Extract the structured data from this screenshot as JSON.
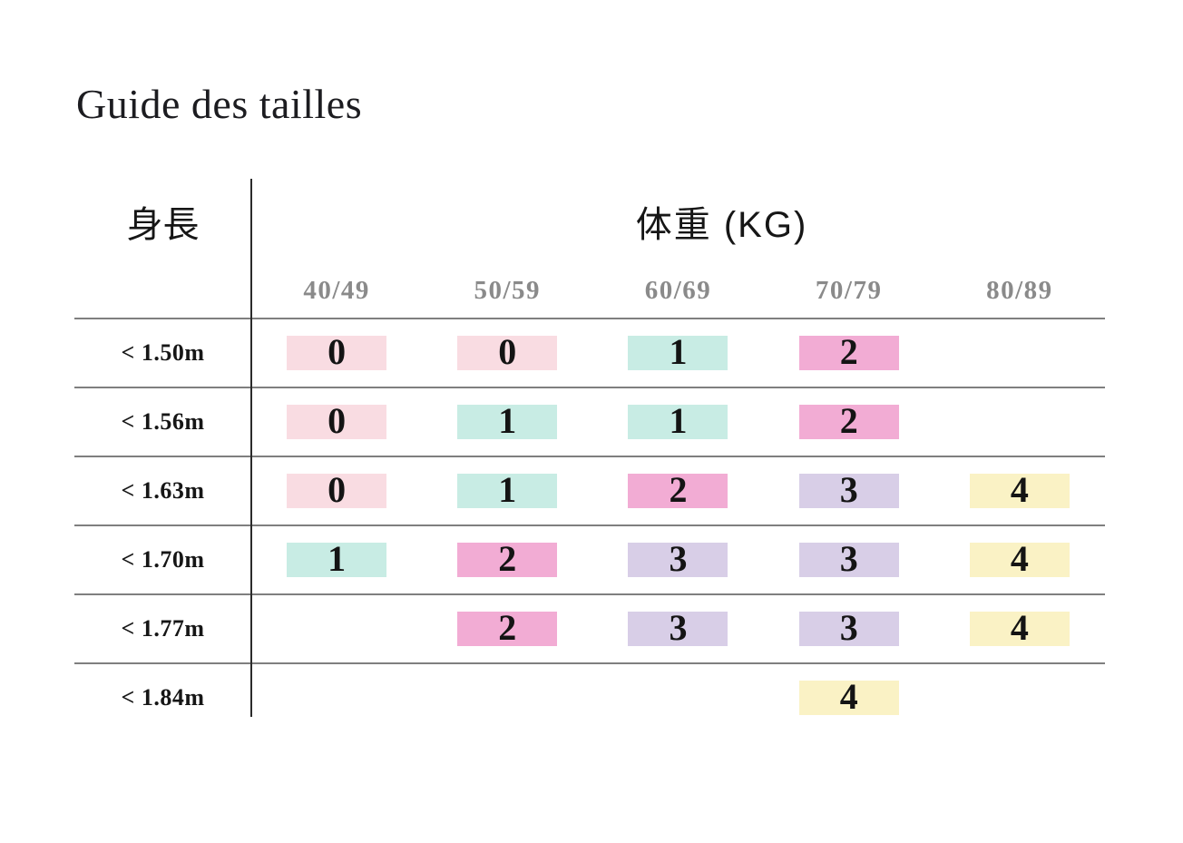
{
  "page": {
    "title": "Guide des tailles"
  },
  "table": {
    "row_axis_label": "身長",
    "col_axis_label": "体重 (KG)",
    "weight_columns": [
      "40/49",
      "50/59",
      "60/69",
      "70/79",
      "80/89"
    ],
    "rows": [
      {
        "height": "< 1.50m",
        "cells": [
          {
            "size": "0",
            "color": "pink"
          },
          {
            "size": "0",
            "color": "pink"
          },
          {
            "size": "1",
            "color": "mint"
          },
          {
            "size": "2",
            "color": "magenta"
          },
          null
        ]
      },
      {
        "height": "< 1.56m",
        "cells": [
          {
            "size": "0",
            "color": "pink"
          },
          {
            "size": "1",
            "color": "mint"
          },
          {
            "size": "1",
            "color": "mint"
          },
          {
            "size": "2",
            "color": "magenta"
          },
          null
        ]
      },
      {
        "height": "< 1.63m",
        "cells": [
          {
            "size": "0",
            "color": "pink"
          },
          {
            "size": "1",
            "color": "mint"
          },
          {
            "size": "2",
            "color": "magenta"
          },
          {
            "size": "3",
            "color": "lavender"
          },
          {
            "size": "4",
            "color": "yellow"
          }
        ]
      },
      {
        "height": "< 1.70m",
        "cells": [
          {
            "size": "1",
            "color": "mint"
          },
          {
            "size": "2",
            "color": "magenta"
          },
          {
            "size": "3",
            "color": "lavender"
          },
          {
            "size": "3",
            "color": "lavender"
          },
          {
            "size": "4",
            "color": "yellow"
          }
        ]
      },
      {
        "height": "< 1.77m",
        "cells": [
          null,
          {
            "size": "2",
            "color": "magenta"
          },
          {
            "size": "3",
            "color": "lavender"
          },
          {
            "size": "3",
            "color": "lavender"
          },
          {
            "size": "4",
            "color": "yellow"
          }
        ]
      },
      {
        "height": "< 1.84m",
        "cells": [
          null,
          null,
          null,
          {
            "size": "4",
            "color": "yellow"
          },
          null
        ]
      }
    ],
    "size_colors": {
      "pink": "#f9dce2",
      "mint": "#c8ece4",
      "magenta": "#f2acd4",
      "lavender": "#d8cee7",
      "yellow": "#faf2c5"
    },
    "line_colors": {
      "horizontal": "#7f7f7f",
      "vertical": "#2b2b2b"
    },
    "header_text_color": "#8a8a8a"
  },
  "chart_data": {
    "type": "table",
    "title": "Guide des tailles",
    "row_axis": "身長",
    "col_axis": "体重 (KG)",
    "columns": [
      "40/49",
      "50/59",
      "60/69",
      "70/79",
      "80/89"
    ],
    "rows": [
      "< 1.50m",
      "< 1.56m",
      "< 1.63m",
      "< 1.70m",
      "< 1.77m",
      "< 1.84m"
    ],
    "values": [
      [
        0,
        0,
        1,
        2,
        null
      ],
      [
        0,
        1,
        1,
        2,
        null
      ],
      [
        0,
        1,
        2,
        3,
        4
      ],
      [
        1,
        2,
        3,
        3,
        4
      ],
      [
        null,
        2,
        3,
        3,
        4
      ],
      [
        null,
        null,
        null,
        4,
        null
      ]
    ],
    "value_color_legend": {
      "0": "pink",
      "1": "mint",
      "2": "magenta",
      "3": "lavender",
      "4": "yellow"
    }
  }
}
